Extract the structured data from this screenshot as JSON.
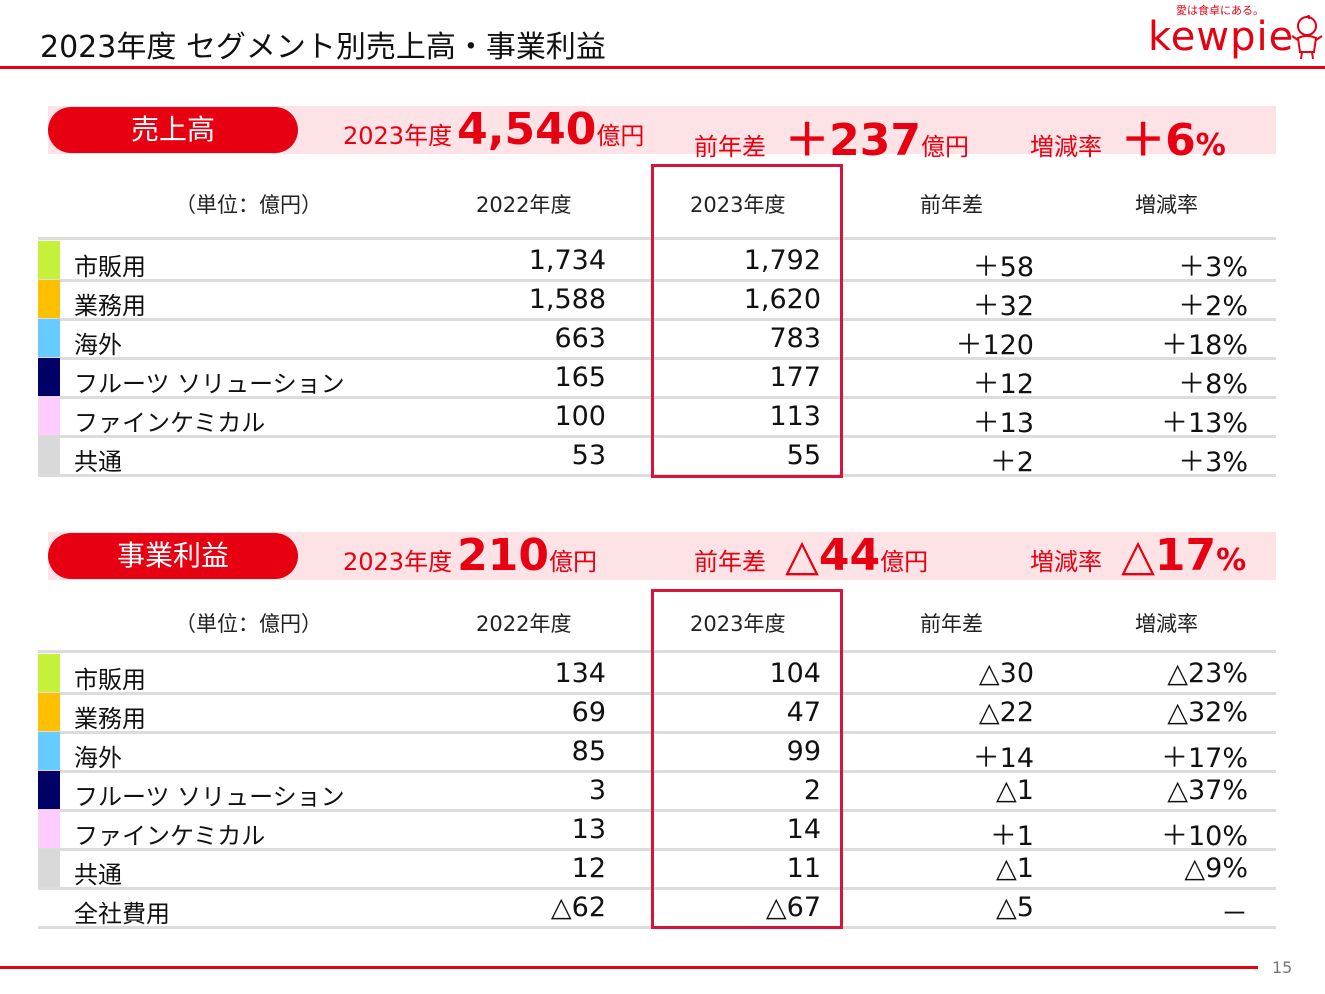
{
  "header": {
    "title": "2023年度 セグメント別売上高・事業利益",
    "logo_tagline": "愛は食卓にある。",
    "logo_word": "kewpie",
    "page_number": "15"
  },
  "colors": {
    "accent": "#e60012",
    "band": "#fde3e6",
    "segments": {
      "retail": "#c6f13a",
      "food_service": "#ffc000",
      "overseas": "#66ccff",
      "fruit": "#000066",
      "fine_chem": "#ffccff",
      "common": "#d9d9d9"
    }
  },
  "sales": {
    "pill_label": "売上高",
    "summary": {
      "year_label": "2023年度",
      "value": "4,540",
      "unit1": "億円",
      "diff_label": "前年差",
      "diff_value": "＋237",
      "unit2": "億円",
      "rate_label": "増減率",
      "rate_value": "＋6",
      "rate_unit": "%"
    },
    "columns": [
      "（単位：億円）",
      "2022年度",
      "2023年度",
      "前年差",
      "増減率"
    ],
    "rows": [
      {
        "name": "市販用",
        "y2022": "1,734",
        "y2023": "1,792",
        "diff": "＋58",
        "rate": "＋3%",
        "color": "#c6f13a"
      },
      {
        "name": "業務用",
        "y2022": "1,588",
        "y2023": "1,620",
        "diff": "＋32",
        "rate": "＋2%",
        "color": "#ffc000"
      },
      {
        "name": "海外",
        "y2022": "663",
        "y2023": "783",
        "diff": "＋120",
        "rate": "＋18%",
        "color": "#66ccff"
      },
      {
        "name": "フルーツ ソリューション",
        "y2022": "165",
        "y2023": "177",
        "diff": "＋12",
        "rate": "＋8%",
        "color": "#000066"
      },
      {
        "name": "ファインケミカル",
        "y2022": "100",
        "y2023": "113",
        "diff": "＋13",
        "rate": "＋13%",
        "color": "#ffccff"
      },
      {
        "name": "共通",
        "y2022": "53",
        "y2023": "55",
        "diff": "＋2",
        "rate": "＋3%",
        "color": "#d9d9d9"
      }
    ]
  },
  "profit": {
    "pill_label": "事業利益",
    "summary": {
      "year_label": "2023年度",
      "value": "210",
      "unit1": "億円",
      "diff_label": "前年差",
      "diff_value": "△44",
      "unit2": "億円",
      "rate_label": "増減率",
      "rate_value": "△17",
      "rate_unit": "%"
    },
    "columns": [
      "（単位：億円）",
      "2022年度",
      "2023年度",
      "前年差",
      "増減率"
    ],
    "rows": [
      {
        "name": "市販用",
        "y2022": "134",
        "y2023": "104",
        "diff": "△30",
        "rate": "△23%",
        "color": "#c6f13a"
      },
      {
        "name": "業務用",
        "y2022": "69",
        "y2023": "47",
        "diff": "△22",
        "rate": "△32%",
        "color": "#ffc000"
      },
      {
        "name": "海外",
        "y2022": "85",
        "y2023": "99",
        "diff": "＋14",
        "rate": "＋17%",
        "color": "#66ccff"
      },
      {
        "name": "フルーツ ソリューション",
        "y2022": "3",
        "y2023": "2",
        "diff": "△1",
        "rate": "△37%",
        "color": "#000066"
      },
      {
        "name": "ファインケミカル",
        "y2022": "13",
        "y2023": "14",
        "diff": "＋1",
        "rate": "＋10%",
        "color": "#ffccff"
      },
      {
        "name": "共通",
        "y2022": "12",
        "y2023": "11",
        "diff": "△1",
        "rate": "△9%",
        "color": "#d9d9d9"
      },
      {
        "name": "全社費用",
        "y2022": "△62",
        "y2023": "△67",
        "diff": "△5",
        "rate": "－",
        "color": ""
      }
    ]
  }
}
